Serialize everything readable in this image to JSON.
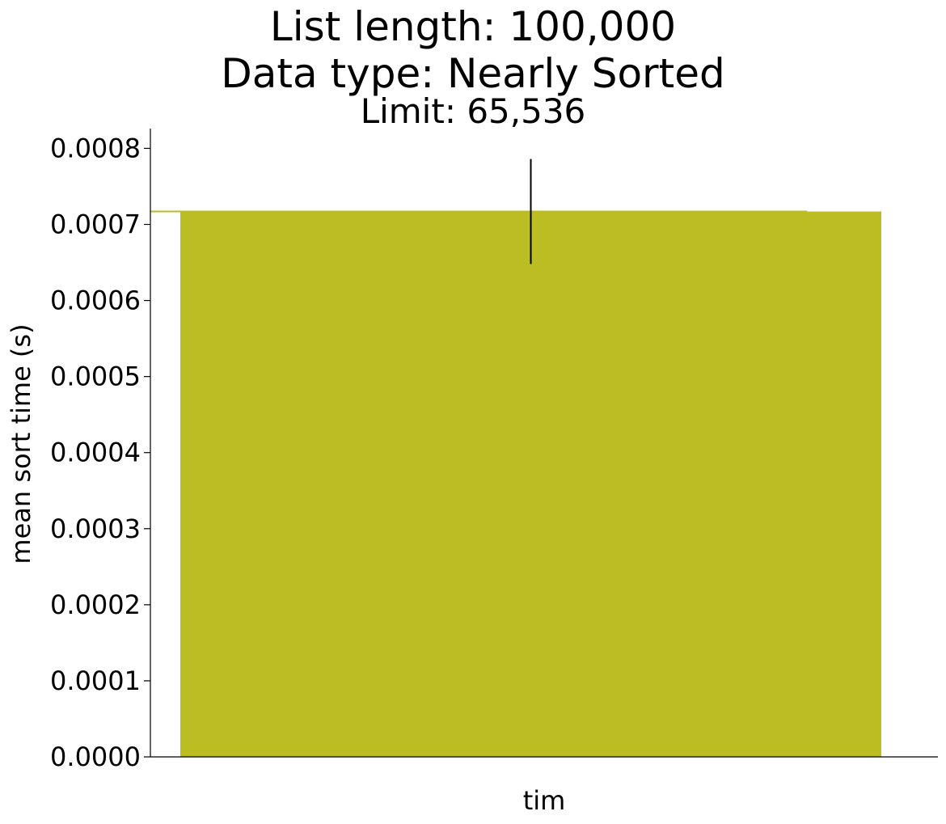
{
  "chart_data": {
    "type": "bar",
    "title_lines": [
      "List length: 100,000",
      "Data type: Nearly Sorted"
    ],
    "subtitle": "Limit: 65,536",
    "xlabel": "",
    "ylabel": "mean sort time (s)",
    "categories": [
      "tim"
    ],
    "series": [
      {
        "values": [
          0.000717
        ],
        "error_low": [
          0.000648
        ],
        "error_high": [
          0.000786
        ],
        "color": "#bcbd22"
      }
    ],
    "reference_line": {
      "value": 0.000717,
      "color": "#bcbd22"
    },
    "ylim": [
      0,
      0.000826
    ],
    "yticks": [
      0.0,
      0.0001,
      0.0002,
      0.0003,
      0.0004,
      0.0005,
      0.0006,
      0.0007,
      0.0008
    ],
    "ytick_labels": [
      "0.0000",
      "0.0001",
      "0.0002",
      "0.0003",
      "0.0004",
      "0.0005",
      "0.0006",
      "0.0007",
      "0.0008"
    ],
    "grid": false,
    "legend": "none"
  }
}
